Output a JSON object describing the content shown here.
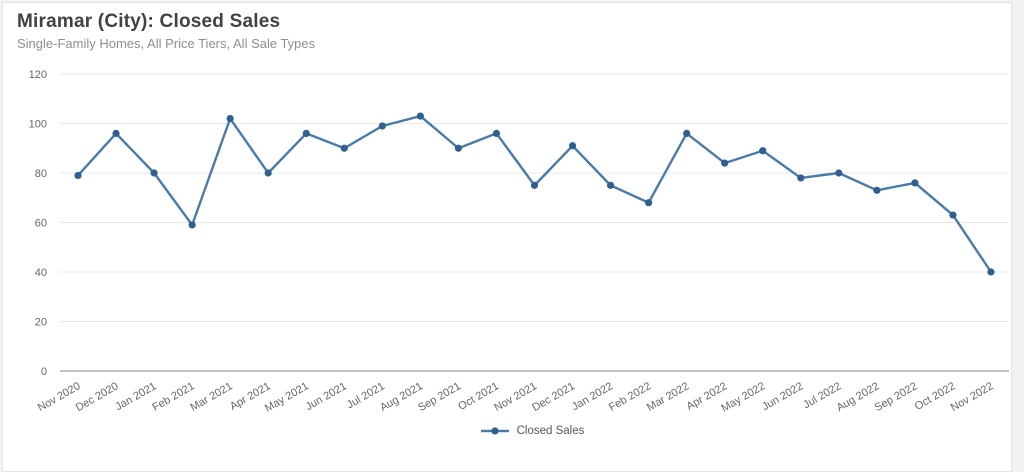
{
  "page": {
    "title": "Miramar (City): Closed Sales",
    "subtitle": "Single-Family Homes, All Price Tiers, All Sale Types"
  },
  "chart_data": {
    "type": "line",
    "title": "Miramar (City): Closed Sales",
    "subtitle": "Single-Family Homes, All Price Tiers, All Sale Types",
    "categories": [
      "Nov 2020",
      "Dec 2020",
      "Jan 2021",
      "Feb 2021",
      "Mar 2021",
      "Apr 2021",
      "May 2021",
      "Jun 2021",
      "Jul 2021",
      "Aug 2021",
      "Sep 2021",
      "Oct 2021",
      "Nov 2021",
      "Dec 2021",
      "Jan 2022",
      "Feb 2022",
      "Mar 2022",
      "Apr 2022",
      "May 2022",
      "Jun 2022",
      "Jul 2022",
      "Aug 2022",
      "Sep 2022",
      "Oct 2022",
      "Nov 2022"
    ],
    "series": [
      {
        "name": "Closed Sales",
        "values": [
          79,
          96,
          80,
          59,
          102,
          80,
          96,
          90,
          99,
          103,
          90,
          96,
          75,
          91,
          75,
          68,
          96,
          84,
          89,
          78,
          80,
          73,
          76,
          63,
          40
        ]
      }
    ],
    "xlabel": "",
    "ylabel": "",
    "ylim": [
      0,
      120
    ],
    "ytick_interval": 20,
    "y_ticks": [
      0,
      20,
      40,
      60,
      80,
      100,
      120
    ],
    "grid": true,
    "legend_position": "bottom",
    "line_color": "#4a7aa6",
    "marker_color": "#2f6090",
    "gridline_color": "#e8e8e8",
    "axis_line_color": "#9b9b9b",
    "tick_label_color": "#666666"
  }
}
